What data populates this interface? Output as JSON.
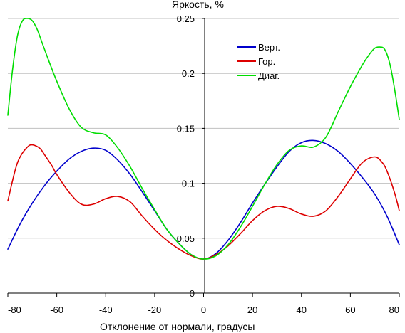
{
  "chart_data": {
    "type": "line",
    "title": "",
    "xlabel": "Отклонение от нормали, градусы",
    "ylabel": "Яркость, %",
    "xlim": [
      -80,
      80
    ],
    "ylim": [
      0,
      0.25
    ],
    "x_ticks": [
      -80,
      -60,
      -40,
      -20,
      0,
      20,
      40,
      60,
      80
    ],
    "x_tick_labels": [
      "-80",
      "-60",
      "-40",
      "-20",
      "0",
      "20",
      "40",
      "60",
      "80"
    ],
    "y_ticks": [
      0,
      0.05,
      0.1,
      0.15,
      0.2,
      0.25
    ],
    "y_tick_labels": [
      "0",
      "0.05",
      "0.1",
      "0.15",
      "0.2",
      "0.25"
    ],
    "grid": "horizontal",
    "legend_position": "top-right",
    "series": [
      {
        "name": "Верт.",
        "color": "#0000cc",
        "x": [
          -80,
          -75,
          -70,
          -65,
          -60,
          -55,
          -50,
          -45,
          -40,
          -35,
          -30,
          -25,
          -20,
          -15,
          -10,
          -5,
          0,
          5,
          10,
          15,
          20,
          25,
          30,
          35,
          40,
          45,
          50,
          55,
          60,
          65,
          70,
          75,
          80
        ],
        "y": [
          0.04,
          0.063,
          0.082,
          0.098,
          0.111,
          0.122,
          0.129,
          0.132,
          0.13,
          0.121,
          0.108,
          0.092,
          0.075,
          0.058,
          0.045,
          0.035,
          0.031,
          0.036,
          0.048,
          0.064,
          0.082,
          0.099,
          0.115,
          0.129,
          0.137,
          0.139,
          0.136,
          0.129,
          0.118,
          0.105,
          0.09,
          0.07,
          0.044
        ]
      },
      {
        "name": "Гор.",
        "color": "#dd0000",
        "x": [
          -80,
          -77,
          -75,
          -72,
          -70,
          -67,
          -65,
          -62,
          -60,
          -55,
          -50,
          -45,
          -40,
          -35,
          -30,
          -25,
          -20,
          -15,
          -10,
          -5,
          0,
          5,
          10,
          15,
          20,
          25,
          30,
          35,
          40,
          45,
          50,
          55,
          60,
          65,
          70,
          73,
          75,
          78,
          80
        ],
        "y": [
          0.084,
          0.112,
          0.124,
          0.133,
          0.135,
          0.132,
          0.126,
          0.116,
          0.108,
          0.092,
          0.081,
          0.081,
          0.086,
          0.088,
          0.083,
          0.07,
          0.058,
          0.048,
          0.04,
          0.034,
          0.031,
          0.035,
          0.043,
          0.054,
          0.066,
          0.075,
          0.079,
          0.077,
          0.072,
          0.07,
          0.075,
          0.088,
          0.104,
          0.119,
          0.124,
          0.119,
          0.111,
          0.092,
          0.075
        ]
      },
      {
        "name": "Диаг.",
        "color": "#00dd00",
        "x": [
          -80,
          -78,
          -76,
          -74,
          -72,
          -70,
          -68,
          -66,
          -63,
          -60,
          -55,
          -50,
          -45,
          -40,
          -35,
          -30,
          -25,
          -20,
          -15,
          -10,
          -5,
          0,
          5,
          10,
          15,
          20,
          25,
          30,
          35,
          40,
          45,
          50,
          55,
          60,
          65,
          68,
          70,
          72,
          74,
          76,
          78,
          80
        ],
        "y": [
          0.162,
          0.205,
          0.235,
          0.248,
          0.25,
          0.248,
          0.24,
          0.228,
          0.21,
          0.193,
          0.168,
          0.151,
          0.146,
          0.144,
          0.132,
          0.115,
          0.095,
          0.076,
          0.058,
          0.045,
          0.035,
          0.031,
          0.034,
          0.044,
          0.06,
          0.079,
          0.099,
          0.117,
          0.13,
          0.134,
          0.133,
          0.142,
          0.165,
          0.188,
          0.208,
          0.218,
          0.223,
          0.224,
          0.222,
          0.21,
          0.187,
          0.158
        ]
      }
    ]
  }
}
